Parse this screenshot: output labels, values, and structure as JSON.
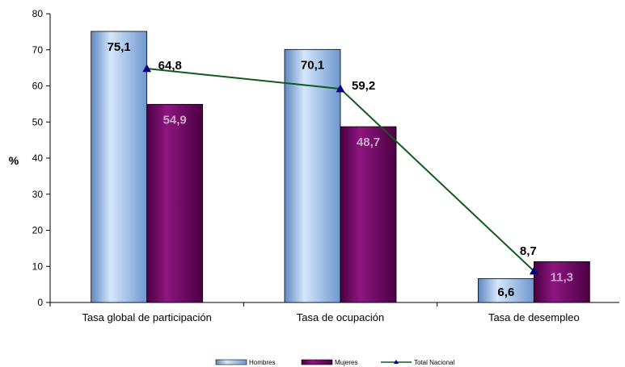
{
  "chart_data": {
    "type": "bar",
    "title": "",
    "xlabel": "",
    "ylabel": "%",
    "ylim": [
      0,
      80
    ],
    "yticks": [
      0,
      10,
      20,
      30,
      40,
      50,
      60,
      70,
      80
    ],
    "grid": false,
    "legend_position": "bottom",
    "categories": [
      "Tasa global de participación",
      "Tasa de ocupación",
      "Tasa de desempleo"
    ],
    "series": [
      {
        "name": "Hombres",
        "kind": "bar",
        "values": [
          75.1,
          70.1,
          6.6
        ],
        "labels": [
          "75,1",
          "70,1",
          "6,6"
        ],
        "color": "#8fb8e8",
        "label_color": "#000000"
      },
      {
        "name": "Mujeres",
        "kind": "bar",
        "values": [
          54.9,
          48.7,
          11.3
        ],
        "labels": [
          "54,9",
          "48,7",
          "11,3"
        ],
        "color": "#7d0a6e",
        "label_color": "#c9a9c9"
      },
      {
        "name": "Total Nacional",
        "kind": "line",
        "values": [
          64.8,
          59.2,
          8.7
        ],
        "labels": [
          "64,8",
          "59,2",
          "8,7"
        ],
        "color": "#0f5c1a",
        "marker_color": "#000080",
        "label_color": "#000000"
      }
    ]
  }
}
